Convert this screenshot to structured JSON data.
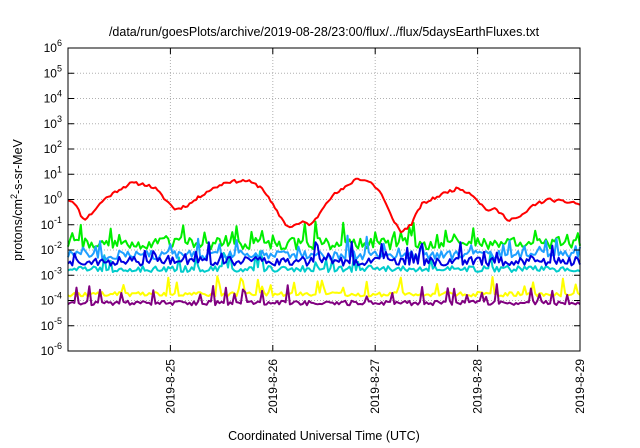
{
  "chart_data": {
    "type": "line",
    "title": "/data/run/goesPlots/archive/2019-08-28/23:00/flux/../flux/5daysEarthFluxes.txt",
    "xlabel": "Coordinated Universal Time (UTC)",
    "ylabel": {
      "pre": "protons/cm",
      "sup": "2",
      "post": "-s-sr-MeV"
    },
    "y_scale": "log",
    "ylim_exponents": [
      -6,
      6
    ],
    "y_tick_exponents": [
      -6,
      -5,
      -4,
      -3,
      -2,
      -1,
      0,
      1,
      2,
      3,
      4,
      5,
      6
    ],
    "x_tick_labels": [
      "2019-8-25",
      "2019-8-26",
      "2019-8-27",
      "2019-8-28",
      "2019-8-29"
    ],
    "x_tick_days": [
      1,
      2,
      3,
      4,
      5
    ],
    "xlim_days": [
      0,
      5
    ],
    "grid": true,
    "series": [
      {
        "color": "#ff0000",
        "width": 2,
        "seed": 11,
        "noise": 0.12,
        "log_points": [
          [
            0.0,
            0.0
          ],
          [
            0.06,
            -0.1
          ],
          [
            0.15,
            -0.8
          ],
          [
            0.22,
            -0.6
          ],
          [
            0.35,
            0.0
          ],
          [
            0.5,
            0.4
          ],
          [
            0.62,
            0.65
          ],
          [
            0.75,
            0.6
          ],
          [
            0.85,
            0.45
          ],
          [
            0.95,
            0.0
          ],
          [
            1.05,
            -0.4
          ],
          [
            1.18,
            -0.2
          ],
          [
            1.35,
            0.3
          ],
          [
            1.55,
            0.7
          ],
          [
            1.75,
            0.75
          ],
          [
            1.9,
            0.45
          ],
          [
            2.05,
            -0.55
          ],
          [
            2.15,
            -1.1
          ],
          [
            2.3,
            -0.9
          ],
          [
            2.38,
            -1.0
          ],
          [
            2.45,
            -0.6
          ],
          [
            2.52,
            -0.1
          ],
          [
            2.6,
            0.2
          ],
          [
            2.72,
            0.5
          ],
          [
            2.82,
            0.85
          ],
          [
            2.95,
            0.7
          ],
          [
            3.05,
            0.3
          ],
          [
            3.15,
            -0.6
          ],
          [
            3.25,
            -1.3
          ],
          [
            3.35,
            -1.0
          ],
          [
            3.45,
            -0.2
          ],
          [
            3.55,
            0.0
          ],
          [
            3.7,
            0.3
          ],
          [
            3.82,
            0.45
          ],
          [
            3.95,
            0.2
          ],
          [
            4.08,
            -0.4
          ],
          [
            4.18,
            -0.4
          ],
          [
            4.3,
            -0.8
          ],
          [
            4.42,
            -0.7
          ],
          [
            4.55,
            -0.2
          ],
          [
            4.7,
            0.0
          ],
          [
            4.85,
            -0.1
          ],
          [
            4.93,
            -0.1
          ],
          [
            5.0,
            -0.2
          ]
        ]
      },
      {
        "color": "#00ee00",
        "width": 2,
        "seed": 22,
        "noise": 0.45,
        "base": -1.75
      },
      {
        "color": "#00cccc",
        "width": 2,
        "seed": 33,
        "noise": 0.25,
        "base": -2.75
      },
      {
        "color": "#1f9fff",
        "width": 2,
        "seed": 44,
        "noise": 0.35,
        "base": -2.2
      },
      {
        "color": "#0000e0",
        "width": 2,
        "seed": 55,
        "noise": 0.35,
        "base": -2.45
      },
      {
        "color": "#ffff00",
        "width": 2,
        "seed": 66,
        "noise": 0.18,
        "base": -3.75
      },
      {
        "color": "#800080",
        "width": 2,
        "seed": 77,
        "noise": 0.18,
        "base": -4.1
      }
    ]
  }
}
